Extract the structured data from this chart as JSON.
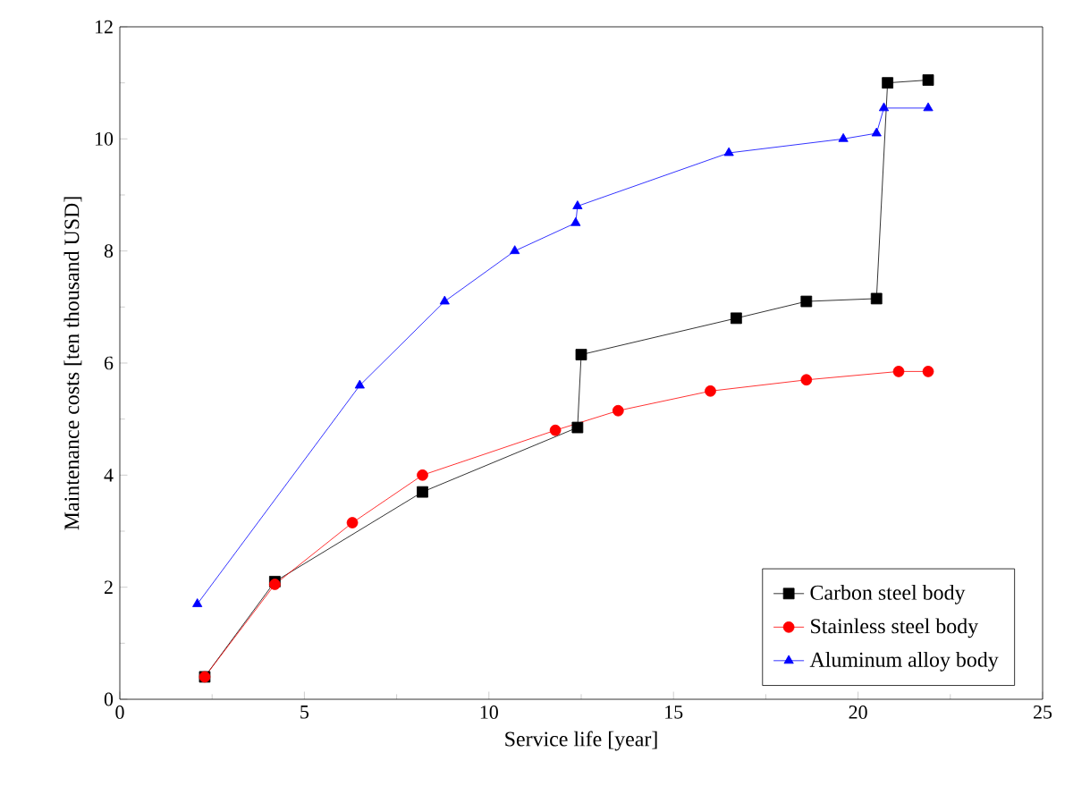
{
  "chart_data": {
    "type": "line",
    "xlabel": "Service life [year]",
    "ylabel": "Maintenance costs [ten thousand USD]",
    "xlim": [
      0,
      25
    ],
    "ylim": [
      0,
      12
    ],
    "xticks": [
      0,
      5,
      10,
      15,
      20,
      25
    ],
    "yticks": [
      0,
      2,
      4,
      6,
      8,
      10,
      12
    ],
    "legend": "bottom right",
    "grid": false,
    "series": [
      {
        "name": "Carbon steel body",
        "color": "#000000",
        "marker": "square",
        "x": [
          2.3,
          4.2,
          8.2,
          12.4,
          12.5,
          16.7,
          18.6,
          20.5,
          20.8,
          21.9
        ],
        "values": [
          0.4,
          2.1,
          3.7,
          4.85,
          6.15,
          6.8,
          7.1,
          7.15,
          11.0,
          11.05
        ]
      },
      {
        "name": "Stainless steel body",
        "color": "#ff0000",
        "marker": "circle",
        "x": [
          2.3,
          4.2,
          6.3,
          8.2,
          11.8,
          13.5,
          16.0,
          18.6,
          21.1,
          21.9
        ],
        "values": [
          0.4,
          2.05,
          3.15,
          4.0,
          4.8,
          5.15,
          5.5,
          5.7,
          5.85,
          5.85
        ]
      },
      {
        "name": "Aluminum alloy body",
        "color": "#0000ff",
        "marker": "triangle",
        "x": [
          2.1,
          6.5,
          8.8,
          10.7,
          12.35,
          12.4,
          16.5,
          19.6,
          20.5,
          20.7,
          21.9
        ],
        "values": [
          1.7,
          5.6,
          7.1,
          8.0,
          8.5,
          8.8,
          9.75,
          10.0,
          10.1,
          10.55,
          10.55
        ]
      }
    ]
  }
}
